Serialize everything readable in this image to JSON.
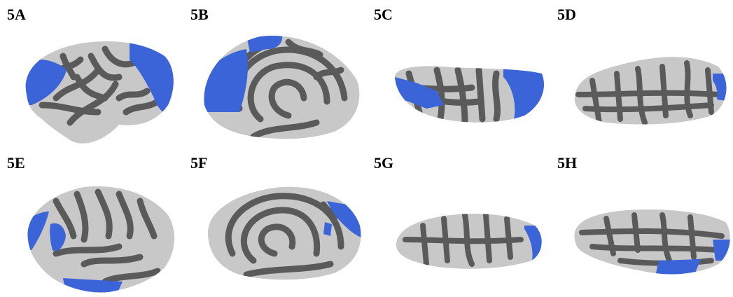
{
  "colors": {
    "background": "#ffffff",
    "gyri_light": "#c8c8c8",
    "sulci_dark": "#5a5a5a",
    "highlight": "#3a64d8"
  },
  "panels": [
    {
      "label": "5A",
      "view": "lateral-left"
    },
    {
      "label": "5B",
      "view": "medial-left"
    },
    {
      "label": "5C",
      "view": "ventral-left"
    },
    {
      "label": "5D",
      "view": "dorsal-left"
    },
    {
      "label": "5E",
      "view": "lateral-right"
    },
    {
      "label": "5F",
      "view": "medial-right"
    },
    {
      "label": "5G",
      "view": "ventral-right"
    },
    {
      "label": "5H",
      "view": "dorsal-right"
    }
  ]
}
